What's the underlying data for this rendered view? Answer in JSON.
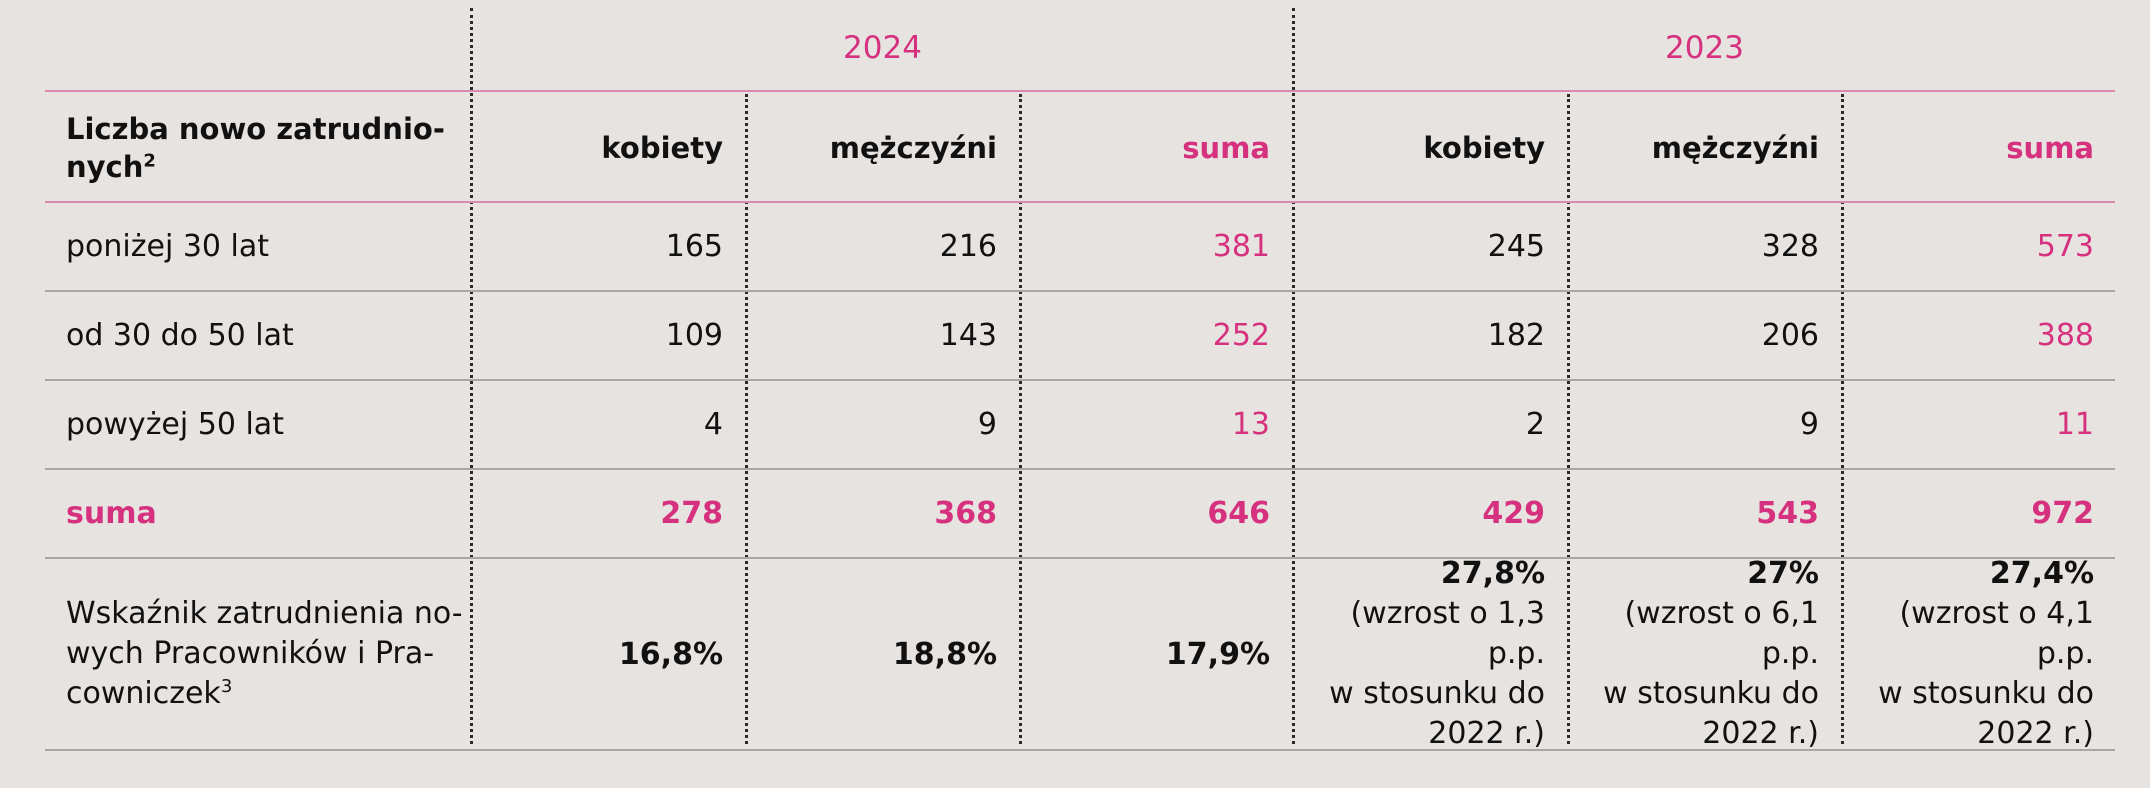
{
  "years": [
    "2024",
    "2023"
  ],
  "header": {
    "label": "Liczba nowo zatrudnio-nych",
    "label_line1": "Liczba nowo zatrudnio-",
    "label_line2": "nych",
    "footnote": "2",
    "columns": [
      "kobiety",
      "mężczyźni",
      "suma",
      "kobiety",
      "mężczyźni",
      "suma"
    ]
  },
  "rows": [
    {
      "label": "poniżej 30 lat",
      "values": [
        "165",
        "216",
        "381",
        "245",
        "328",
        "573"
      ]
    },
    {
      "label": "od 30 do 50 lat",
      "values": [
        "109",
        "143",
        "252",
        "182",
        "206",
        "388"
      ]
    },
    {
      "label": "powyżej 50 lat",
      "values": [
        "4",
        "9",
        "13",
        "2",
        "9",
        "11"
      ]
    }
  ],
  "total": {
    "label": "suma",
    "values": [
      "278",
      "368",
      "646",
      "429",
      "543",
      "972"
    ]
  },
  "rate": {
    "label_line1": "Wskaźnik zatrudnienia no-",
    "label_line2": "wych Pracowników i Pra-",
    "label_line3": "cowniczek",
    "footnote": "3",
    "values_2024": [
      "16,8%",
      "18,8%",
      "17,9%"
    ],
    "values_2023": [
      {
        "value": "27,8%",
        "line1": "(wzrost o 1,3 p.p.",
        "line2": "w stosunku do",
        "line3": "2022 r.)"
      },
      {
        "value": "27%",
        "line1": "(wzrost o 6,1 p.p.",
        "line2": "w stosunku do",
        "line3": "2022 r.)"
      },
      {
        "value": "27,4%",
        "line1": "(wzrost o 4,1 p.p.",
        "line2": "w stosunku do",
        "line3": "2022 r.)"
      }
    ]
  },
  "colors": {
    "accent": "#d6317e",
    "text": "#111111",
    "background": "#e7e3e0",
    "rule": "#a9a6a3"
  }
}
